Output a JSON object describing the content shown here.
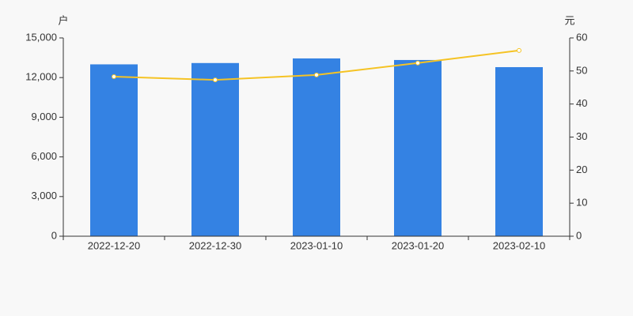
{
  "chart_data": {
    "type": "bar",
    "y_label": "户",
    "y2_label": "元",
    "categories": [
      "2022-12-20",
      "2022-12-30",
      "2023-01-10",
      "2023-01-20",
      "2023-02-10"
    ],
    "series": [
      {
        "type": "bar",
        "color": "#3482e3",
        "values": [
          13000,
          13100,
          13450,
          13330,
          12790
        ]
      },
      {
        "type": "line",
        "axis": "y2",
        "color": "#f5c324",
        "values": [
          48.3,
          47.3,
          48.8,
          52.4,
          56.2
        ]
      }
    ],
    "ylim": [
      0,
      15000
    ],
    "yticks": [
      0,
      {
        "value": 3000,
        "label": "3,000"
      },
      {
        "value": 6000,
        "label": "6,000"
      },
      {
        "value": 9000,
        "label": "9,000"
      },
      {
        "value": 12000,
        "label": "12,000"
      },
      {
        "value": 15000,
        "label": "15,000"
      }
    ],
    "y2lim": [
      0,
      60
    ],
    "y2ticks": [
      0,
      10,
      20,
      30,
      40,
      50,
      60
    ]
  }
}
